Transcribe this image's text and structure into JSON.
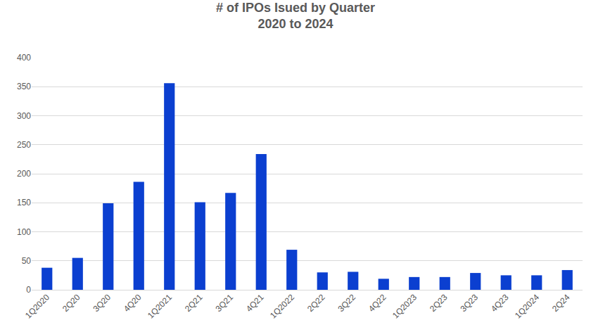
{
  "chart_data": {
    "type": "bar",
    "title": "# of IPOs Isued by Quarter",
    "subtitle": "2020 to 2024",
    "categories": [
      "1Q2020",
      "2Q20",
      "3Q20",
      "4Q20",
      "1Q2021",
      "2Q21",
      "3Q21",
      "4Q21",
      "1Q2022",
      "2Q22",
      "3Q22",
      "4Q22",
      "1Q2023",
      "2Q23",
      "3Q23",
      "4Q23",
      "1Q2024",
      "2Q24"
    ],
    "values": [
      38,
      55,
      149,
      186,
      356,
      151,
      167,
      234,
      69,
      30,
      31,
      19,
      22,
      22,
      29,
      25,
      25,
      34
    ],
    "color": "#0b3fd0",
    "ylim": [
      0,
      400
    ],
    "yticks": [
      0,
      50,
      100,
      150,
      200,
      250,
      300,
      350,
      400
    ],
    "grid": true
  }
}
